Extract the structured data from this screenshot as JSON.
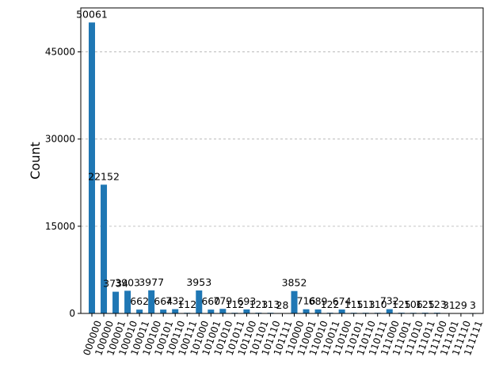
{
  "chart_data": {
    "type": "bar",
    "title": "",
    "xlabel": "",
    "ylabel": "Count",
    "ylim": [
      0,
      52565
    ],
    "yticks": [
      0,
      15000,
      30000,
      45000
    ],
    "ytick_labels": [
      "0",
      "15000",
      "30000",
      "45000"
    ],
    "grid": "y-dashed",
    "bar_color": "#1f77b4",
    "categories": [
      "000000",
      "100000",
      "100001",
      "100010",
      "100011",
      "100100",
      "100101",
      "100110",
      "100111",
      "101000",
      "101001",
      "101010",
      "101011",
      "101100",
      "101101",
      "101110",
      "101111",
      "110000",
      "110001",
      "110010",
      "110011",
      "110100",
      "110101",
      "110110",
      "110111",
      "111000",
      "111001",
      "111010",
      "111011",
      "111100",
      "111101",
      "111110",
      "111111"
    ],
    "values": [
      50061,
      22152,
      3734,
      3903,
      662,
      3977,
      664,
      732,
      112,
      3953,
      660,
      779,
      112,
      693,
      123,
      113,
      28,
      3852,
      716,
      689,
      122,
      674,
      115,
      113,
      110,
      732,
      125,
      106,
      125,
      123,
      31,
      29,
      3
    ],
    "labels": [
      "50061",
      "22152",
      "3734",
      "3903",
      "662",
      "3977",
      "664",
      "732",
      "112",
      "3953",
      "660",
      "779",
      "112",
      "693",
      "123",
      "113",
      "28",
      "3852",
      "716",
      "689",
      "122",
      "674",
      "115",
      "113",
      "110",
      "732",
      "125",
      "106",
      "125",
      "123",
      "31",
      "29",
      "3"
    ]
  }
}
